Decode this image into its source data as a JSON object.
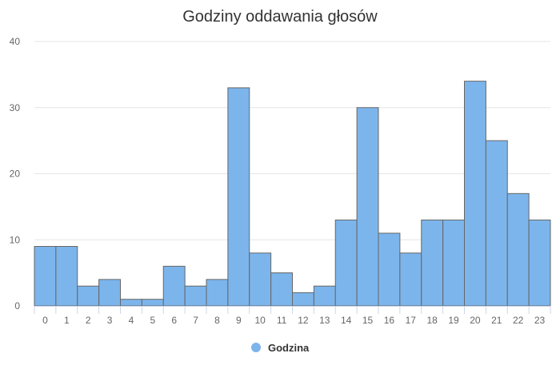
{
  "chart_data": {
    "type": "bar",
    "title": "Godziny oddawania głosów",
    "xlabel": "",
    "ylabel": "",
    "categories": [
      "0",
      "1",
      "2",
      "3",
      "4",
      "5",
      "6",
      "7",
      "8",
      "9",
      "10",
      "11",
      "12",
      "13",
      "14",
      "15",
      "16",
      "17",
      "18",
      "19",
      "20",
      "21",
      "22",
      "23"
    ],
    "series": [
      {
        "name": "Godzina",
        "color": "#7cb5ec",
        "values": [
          9,
          9,
          3,
          4,
          1,
          1,
          6,
          3,
          4,
          33,
          8,
          5,
          2,
          3,
          13,
          30,
          11,
          8,
          13,
          13,
          34,
          25,
          17,
          13
        ]
      }
    ],
    "ylim": [
      0,
      40
    ],
    "yticks": [
      0,
      10,
      20,
      30,
      40
    ],
    "grid": true,
    "legend": "bottom-center"
  }
}
